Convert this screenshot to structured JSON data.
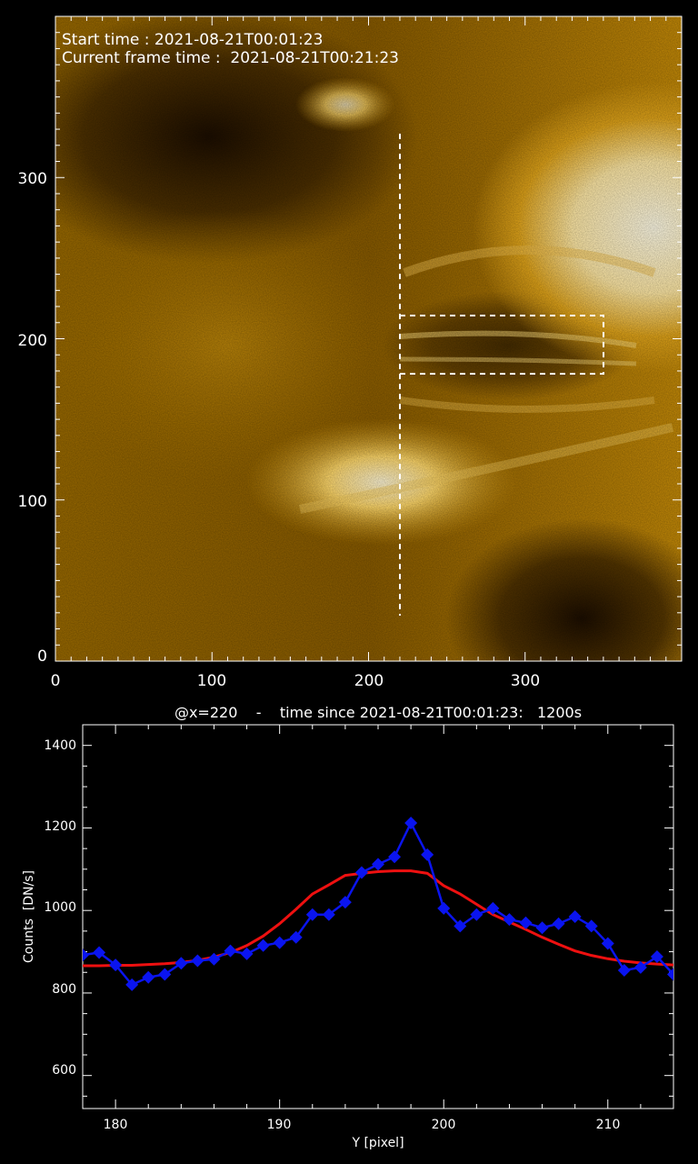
{
  "colors": {
    "background": "#000000",
    "foreground": "#ffffff",
    "image_dark": "#1a0d00",
    "image_mid": "#b07a00",
    "image_bright": "#fff6cf",
    "data_series": "#0a14f0",
    "fit_series": "#ee1010"
  },
  "image_panel": {
    "start_time_text": "Start time : 2021-08-21T00:01:23",
    "frame_time_text": "Current frame time :  2021-08-21T00:21:23",
    "slit_x": 220,
    "box": {
      "x": [
        220,
        350
      ],
      "y": [
        178,
        214
      ]
    },
    "slit_y_range": [
      28,
      328
    ]
  },
  "chart_data": [
    {
      "type": "heatmap",
      "description_source": "solar EUV image (orange colormap)",
      "xlim": [
        0,
        400
      ],
      "ylim": [
        0,
        400
      ],
      "x_ticks": [
        "0",
        "100",
        "200",
        "300"
      ],
      "y_ticks": [
        "0",
        "100",
        "200",
        "300"
      ],
      "x_tick_values": [
        0,
        100,
        200,
        300
      ],
      "y_tick_values": [
        0,
        100,
        200,
        300
      ]
    },
    {
      "type": "line",
      "title": "@x=220    -    time since 2021-08-21T00:01:23:   1200s",
      "xlabel": "Y [pixel]",
      "ylabel": "Counts  [DN/s]",
      "xlim": [
        178,
        214
      ],
      "ylim": [
        520,
        1450
      ],
      "x_ticks": [
        "180",
        "190",
        "200",
        "210"
      ],
      "x_tick_values": [
        180,
        190,
        200,
        210
      ],
      "y_ticks": [
        "600",
        "800",
        "1000",
        "1200",
        "1400"
      ],
      "y_tick_values": [
        600,
        800,
        1000,
        1200,
        1400
      ],
      "series": [
        {
          "marker": "diamond",
          "x": [
            178,
            179,
            180,
            181,
            182,
            183,
            184,
            185,
            186,
            187,
            188,
            189,
            190,
            191,
            192,
            193,
            194,
            195,
            196,
            197,
            198,
            199,
            200,
            201,
            202,
            203,
            204,
            205,
            206,
            207,
            208,
            209,
            210,
            211,
            212,
            213,
            214
          ],
          "values": [
            892,
            898,
            868,
            820,
            838,
            845,
            872,
            878,
            882,
            902,
            895,
            915,
            922,
            935,
            990,
            990,
            1020,
            1092,
            1112,
            1130,
            1212,
            1135,
            1005,
            962,
            990,
            1005,
            978,
            970,
            958,
            968,
            985,
            962,
            920,
            855,
            862,
            888,
            845
          ]
        },
        {
          "marker": "none",
          "x": [
            178,
            179,
            180,
            181,
            182,
            183,
            184,
            185,
            186,
            187,
            188,
            189,
            190,
            191,
            192,
            193,
            194,
            195,
            196,
            197,
            198,
            199,
            200,
            201,
            202,
            203,
            204,
            205,
            206,
            207,
            208,
            209,
            210,
            211,
            212,
            213,
            214
          ],
          "values": [
            866,
            866,
            867,
            867,
            869,
            871,
            874,
            879,
            887,
            898,
            915,
            938,
            968,
            1003,
            1040,
            1062,
            1085,
            1090,
            1094,
            1096,
            1096,
            1090,
            1060,
            1040,
            1015,
            990,
            972,
            954,
            935,
            918,
            902,
            891,
            883,
            877,
            873,
            870,
            868
          ]
        }
      ]
    }
  ]
}
